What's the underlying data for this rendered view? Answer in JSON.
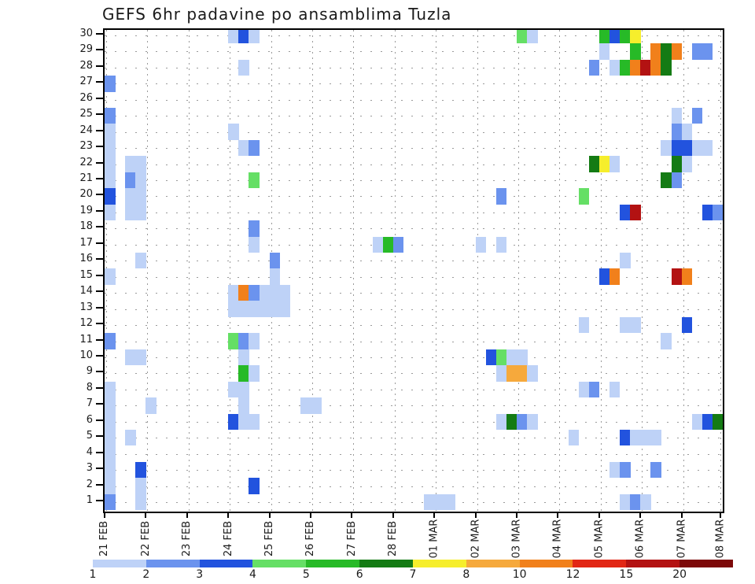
{
  "title": "GEFS 6hr padavine po ansamblima Tuzla",
  "chart_data": {
    "type": "heatmap",
    "title": "GEFS 6hr padavine po ansamblima Tuzla",
    "ylabel_members": [
      "30",
      "29",
      "28",
      "27",
      "26",
      "25",
      "24",
      "23",
      "22",
      "21",
      "20",
      "19",
      "18",
      "17",
      "16",
      "15",
      "14",
      "13",
      "12",
      "11",
      "10",
      "9",
      "8",
      "7",
      "6",
      "5",
      "4",
      "3",
      "2",
      "1"
    ],
    "x_days": [
      "21 FEB",
      "22 FEB",
      "23 FEB",
      "24 FEB",
      "25 FEB",
      "26 FEB",
      "27 FEB",
      "28 FEB",
      "01 MAR",
      "02 MAR",
      "03 MAR",
      "04 MAR",
      "05 MAR",
      "06 MAR",
      "07 MAR",
      "08 MAR"
    ],
    "steps_per_day": 4,
    "x_unit": "6-hour interval index from 21 FEB 00h",
    "grid": "dotted",
    "legend_position": "bottom",
    "colorbar_labels": [
      "1",
      "2",
      "3",
      "4",
      "5",
      "6",
      "7",
      "8",
      "10",
      "12",
      "15",
      "20"
    ],
    "colorbar_colors": [
      "#bed2f7",
      "#6b93ee",
      "#2253de",
      "#65df65",
      "#27ba27",
      "#147b14",
      "#f6ee2c",
      "#f6a93c",
      "#f1801b",
      "#e22715",
      "#b31212",
      "#7d0909"
    ],
    "cells_format": "[member_row, step, width_steps, color_level]",
    "cells": [
      [
        30,
        12,
        1,
        1
      ],
      [
        30,
        13,
        1,
        3
      ],
      [
        30,
        14,
        1,
        1
      ],
      [
        30,
        40,
        1,
        4
      ],
      [
        30,
        41,
        1,
        1
      ],
      [
        30,
        48,
        1,
        5
      ],
      [
        30,
        49,
        1,
        3
      ],
      [
        30,
        50,
        1,
        5
      ],
      [
        30,
        51,
        1,
        7
      ],
      [
        29,
        48,
        1,
        1
      ],
      [
        29,
        51,
        1,
        5
      ],
      [
        29,
        53,
        1,
        9
      ],
      [
        29,
        54,
        1,
        6
      ],
      [
        29,
        55,
        1,
        9
      ],
      [
        29,
        57,
        2,
        2
      ],
      [
        28,
        13,
        1,
        1
      ],
      [
        28,
        47,
        1,
        2
      ],
      [
        28,
        49,
        1,
        1
      ],
      [
        28,
        50,
        1,
        5
      ],
      [
        28,
        51,
        1,
        9
      ],
      [
        28,
        52,
        1,
        11
      ],
      [
        28,
        53,
        1,
        9
      ],
      [
        28,
        54,
        1,
        6
      ],
      [
        27,
        0,
        1,
        2
      ],
      [
        25,
        0,
        1,
        2
      ],
      [
        25,
        55,
        1,
        1
      ],
      [
        25,
        57,
        1,
        2
      ],
      [
        24,
        0,
        1,
        1
      ],
      [
        24,
        12,
        1,
        1
      ],
      [
        24,
        55,
        1,
        2
      ],
      [
        24,
        56,
        1,
        1
      ],
      [
        23,
        0,
        1,
        1
      ],
      [
        23,
        13,
        1,
        1
      ],
      [
        23,
        14,
        1,
        2
      ],
      [
        23,
        54,
        1,
        1
      ],
      [
        23,
        55,
        2,
        3
      ],
      [
        23,
        57,
        1,
        1
      ],
      [
        23,
        58,
        1,
        1
      ],
      [
        22,
        0,
        1,
        1
      ],
      [
        22,
        2,
        2,
        1
      ],
      [
        22,
        47,
        1,
        6
      ],
      [
        22,
        48,
        1,
        7
      ],
      [
        22,
        49,
        1,
        1
      ],
      [
        22,
        55,
        1,
        6
      ],
      [
        22,
        56,
        1,
        1
      ],
      [
        21,
        0,
        1,
        1
      ],
      [
        21,
        2,
        1,
        2
      ],
      [
        21,
        3,
        1,
        1
      ],
      [
        21,
        14,
        1,
        4
      ],
      [
        21,
        54,
        1,
        6
      ],
      [
        21,
        55,
        1,
        2
      ],
      [
        20,
        0,
        1,
        3
      ],
      [
        20,
        2,
        2,
        1
      ],
      [
        20,
        38,
        1,
        2
      ],
      [
        20,
        46,
        1,
        4
      ],
      [
        19,
        0,
        1,
        1
      ],
      [
        19,
        2,
        2,
        1
      ],
      [
        19,
        50,
        1,
        3
      ],
      [
        19,
        51,
        1,
        11
      ],
      [
        19,
        58,
        1,
        3
      ],
      [
        19,
        59,
        1,
        2
      ],
      [
        18,
        14,
        1,
        2
      ],
      [
        17,
        14,
        1,
        1
      ],
      [
        17,
        26,
        1,
        1
      ],
      [
        17,
        27,
        1,
        5
      ],
      [
        17,
        28,
        1,
        2
      ],
      [
        17,
        36,
        1,
        1
      ],
      [
        17,
        38,
        1,
        1
      ],
      [
        16,
        3,
        1,
        1
      ],
      [
        16,
        16,
        1,
        2
      ],
      [
        16,
        50,
        1,
        1
      ],
      [
        15,
        0,
        1,
        1
      ],
      [
        15,
        16,
        1,
        1
      ],
      [
        15,
        48,
        1,
        3
      ],
      [
        15,
        49,
        1,
        9
      ],
      [
        15,
        55,
        1,
        11
      ],
      [
        15,
        56,
        1,
        9
      ],
      [
        14,
        12,
        1,
        1
      ],
      [
        14,
        13,
        1,
        9
      ],
      [
        14,
        14,
        1,
        2
      ],
      [
        14,
        15,
        3,
        1
      ],
      [
        13,
        12,
        6,
        1
      ],
      [
        12,
        46,
        1,
        1
      ],
      [
        12,
        50,
        2,
        1
      ],
      [
        12,
        56,
        1,
        3
      ],
      [
        11,
        0,
        1,
        2
      ],
      [
        11,
        12,
        1,
        4
      ],
      [
        11,
        13,
        1,
        2
      ],
      [
        11,
        14,
        1,
        1
      ],
      [
        11,
        54,
        1,
        1
      ],
      [
        10,
        2,
        2,
        1
      ],
      [
        10,
        13,
        1,
        1
      ],
      [
        10,
        37,
        1,
        3
      ],
      [
        10,
        38,
        1,
        4
      ],
      [
        10,
        39,
        2,
        1
      ],
      [
        9,
        13,
        1,
        5
      ],
      [
        9,
        14,
        1,
        1
      ],
      [
        9,
        38,
        1,
        1
      ],
      [
        9,
        39,
        2,
        8
      ],
      [
        9,
        41,
        1,
        1
      ],
      [
        8,
        0,
        1,
        1
      ],
      [
        8,
        12,
        2,
        1
      ],
      [
        8,
        46,
        1,
        1
      ],
      [
        8,
        47,
        1,
        2
      ],
      [
        8,
        49,
        1,
        1
      ],
      [
        7,
        0,
        1,
        1
      ],
      [
        7,
        4,
        1,
        1
      ],
      [
        7,
        13,
        1,
        1
      ],
      [
        7,
        19,
        2,
        1
      ],
      [
        6,
        0,
        1,
        1
      ],
      [
        6,
        12,
        1,
        3
      ],
      [
        6,
        13,
        2,
        1
      ],
      [
        6,
        38,
        1,
        1
      ],
      [
        6,
        39,
        1,
        6
      ],
      [
        6,
        40,
        1,
        2
      ],
      [
        6,
        41,
        1,
        1
      ],
      [
        6,
        57,
        1,
        1
      ],
      [
        6,
        58,
        1,
        3
      ],
      [
        6,
        59,
        1,
        6
      ],
      [
        5,
        0,
        1,
        1
      ],
      [
        5,
        2,
        1,
        1
      ],
      [
        5,
        45,
        1,
        1
      ],
      [
        5,
        50,
        1,
        3
      ],
      [
        5,
        51,
        3,
        1
      ],
      [
        4,
        0,
        1,
        1
      ],
      [
        3,
        0,
        1,
        1
      ],
      [
        3,
        3,
        1,
        3
      ],
      [
        3,
        49,
        1,
        1
      ],
      [
        3,
        50,
        1,
        2
      ],
      [
        3,
        53,
        1,
        2
      ],
      [
        2,
        0,
        1,
        1
      ],
      [
        2,
        3,
        1,
        1
      ],
      [
        2,
        14,
        1,
        3
      ],
      [
        1,
        0,
        1,
        2
      ],
      [
        1,
        3,
        1,
        1
      ],
      [
        1,
        31,
        2,
        1
      ],
      [
        1,
        33,
        1,
        1
      ],
      [
        1,
        50,
        1,
        1
      ],
      [
        1,
        51,
        1,
        2
      ],
      [
        1,
        52,
        1,
        1
      ]
    ]
  }
}
